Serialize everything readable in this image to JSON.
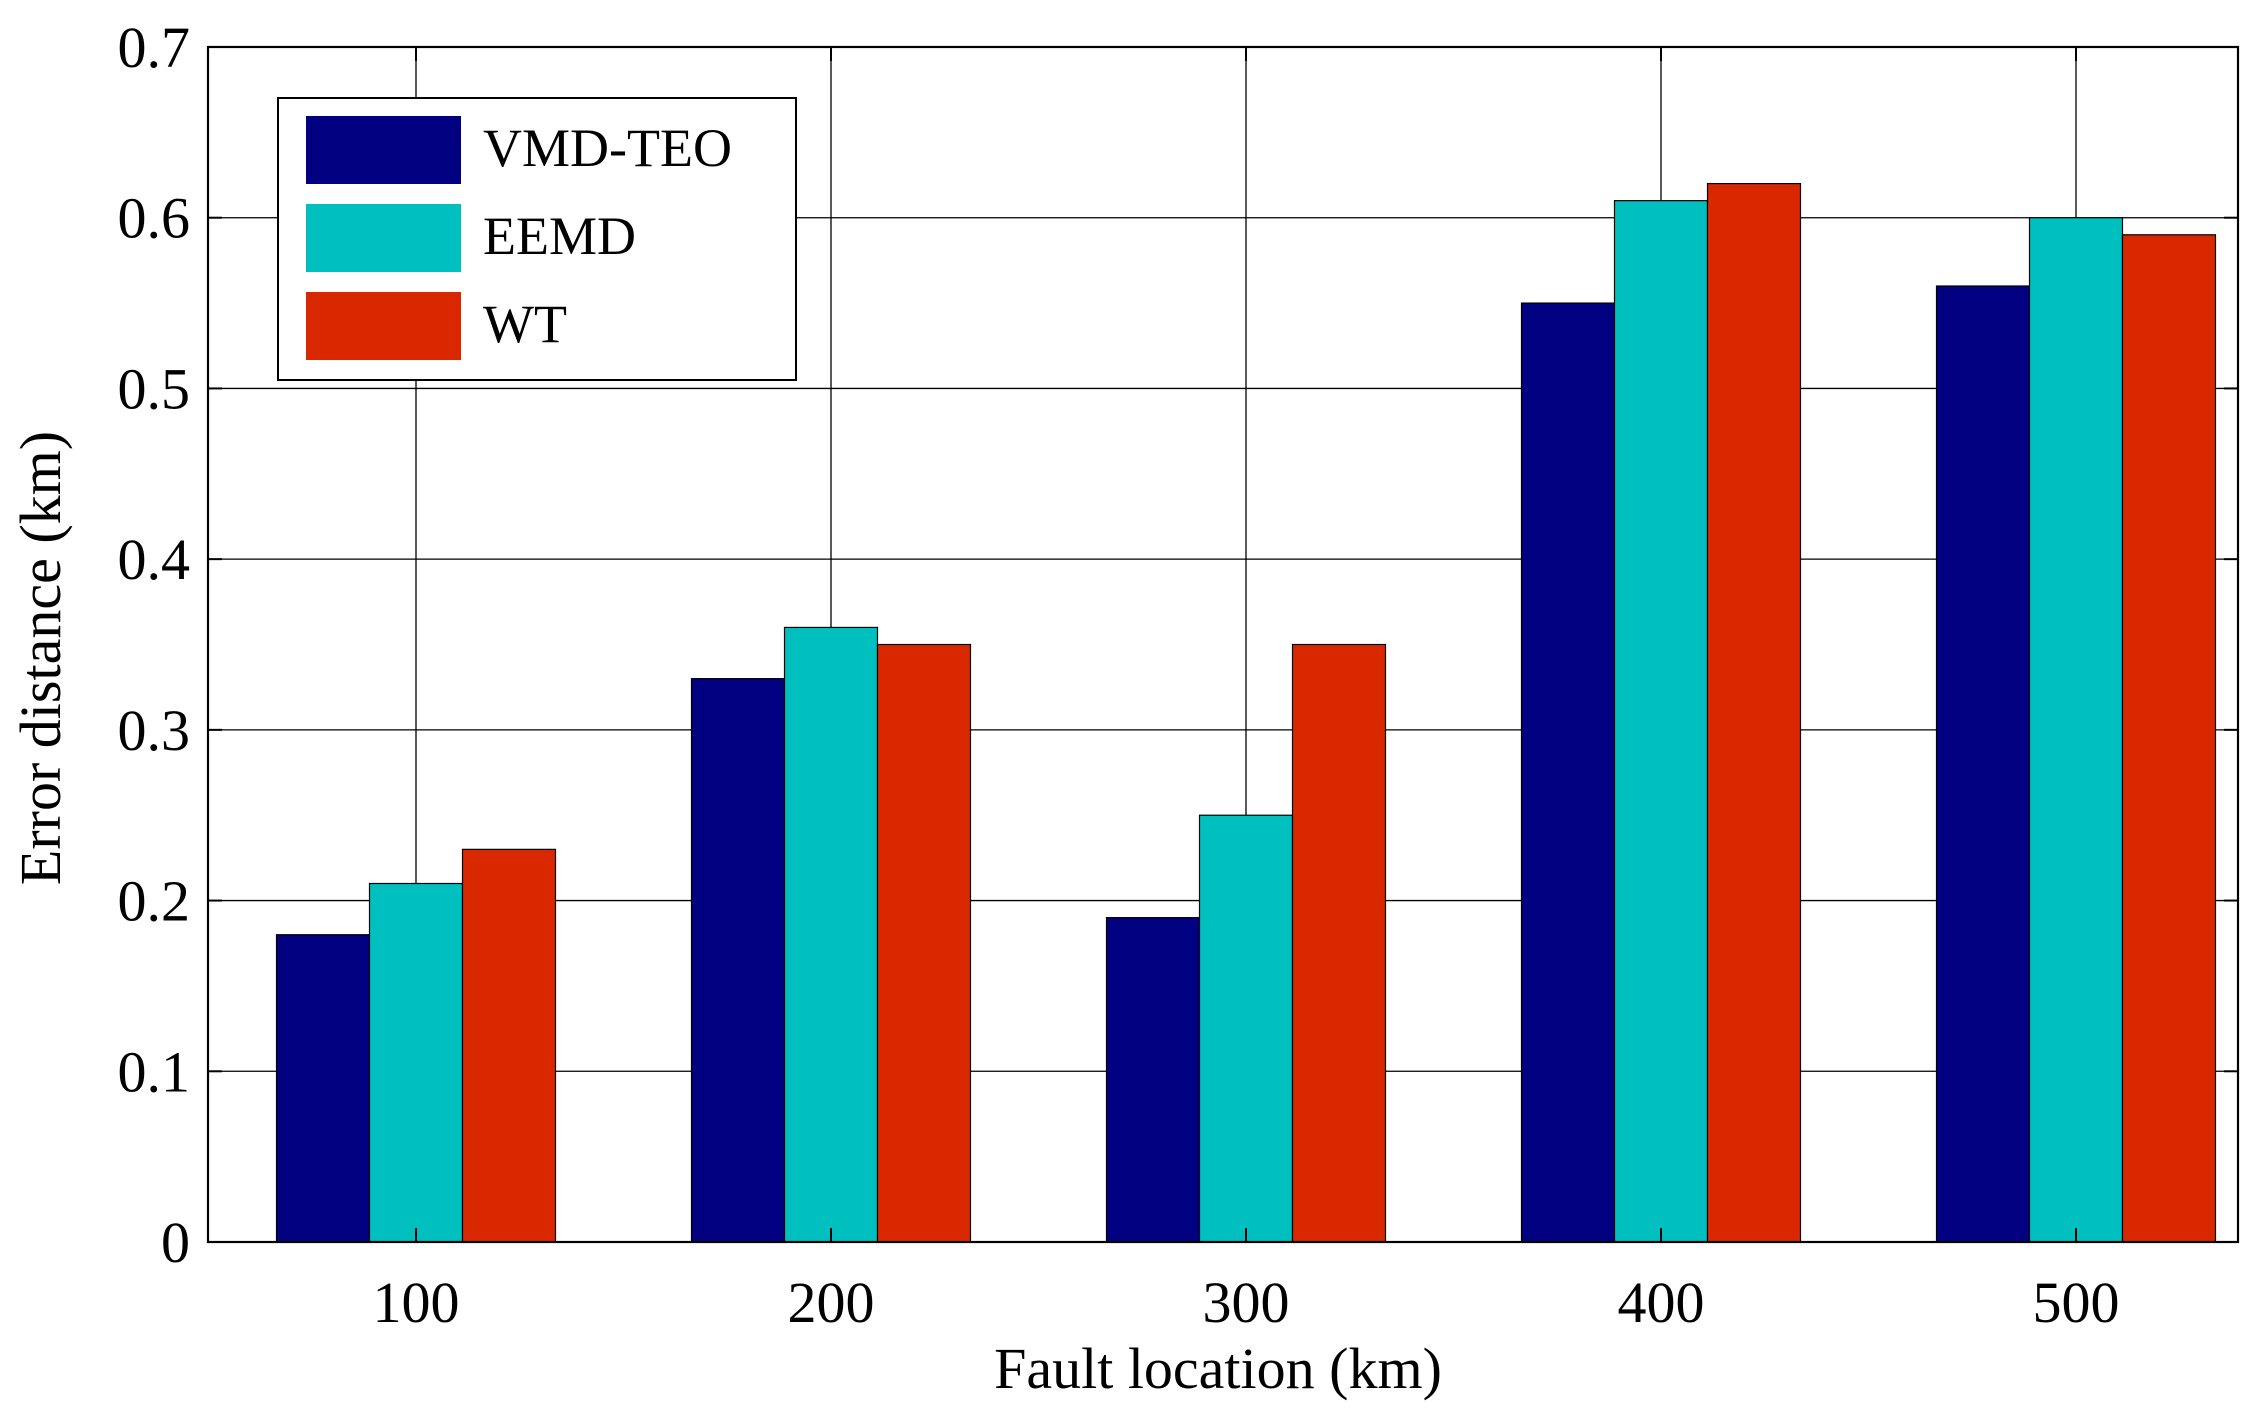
{
  "chart_data": {
    "type": "bar",
    "title": "",
    "xlabel": "Fault location (km)",
    "ylabel": "Error distance (km)",
    "categories": [
      "100",
      "200",
      "300",
      "400",
      "500"
    ],
    "ylim": [
      0,
      0.7
    ],
    "yticks": [
      "0",
      "0.1",
      "0.2",
      "0.3",
      "0.4",
      "0.5",
      "0.6",
      "0.7"
    ],
    "grid": true,
    "legend_position": "top-left",
    "series": [
      {
        "name": "VMD-TEO",
        "color": "#000080",
        "values": [
          0.18,
          0.33,
          0.19,
          0.55,
          0.56
        ]
      },
      {
        "name": "EEMD",
        "color": "#00BFBF",
        "values": [
          0.21,
          0.36,
          0.25,
          0.61,
          0.6
        ]
      },
      {
        "name": "WT",
        "color": "#D92800",
        "values": [
          0.23,
          0.35,
          0.35,
          0.62,
          0.59
        ]
      }
    ]
  }
}
